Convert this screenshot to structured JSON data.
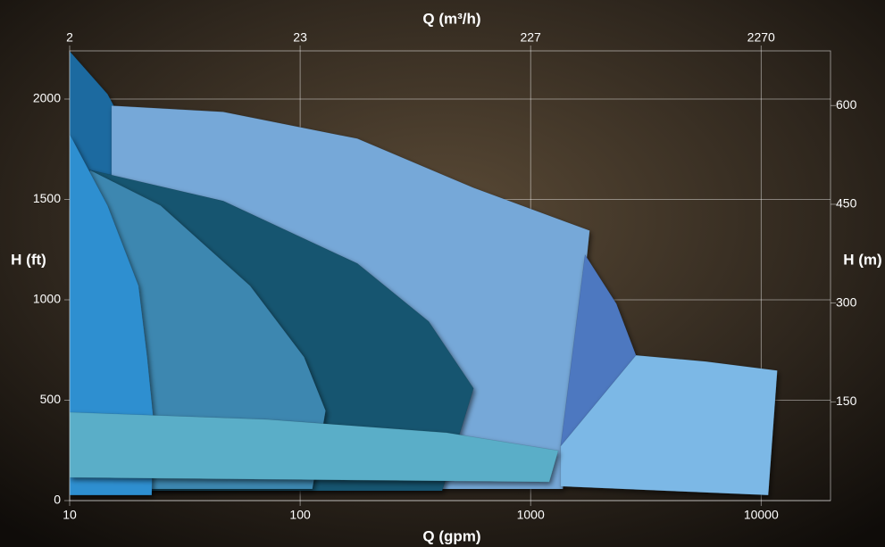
{
  "chart_data": {
    "type": "region",
    "xlabel": "Q (gpm)",
    "x2label": "Q (m³/h)",
    "ylabel": "H (ft)",
    "y2label": "H (m)",
    "xscale": "log",
    "x2scale": "log",
    "grid": true,
    "xlim": [
      10,
      20000
    ],
    "xticks": [
      10,
      100,
      1000,
      10000
    ],
    "x2lim": [
      2.27,
      4542
    ],
    "x2ticks": [
      {
        "value": 2.27,
        "label": "2"
      },
      {
        "value": 22.7,
        "label": "23"
      },
      227,
      2270
    ],
    "ylim": [
      0,
      2240
    ],
    "yticks": [
      0,
      500,
      1000,
      1500,
      2000
    ],
    "y2lim": [
      0,
      683
    ],
    "y2ticks": [
      150,
      300,
      450,
      600
    ],
    "series": [
      {
        "color": "#1c6aa0",
        "x": [
          10,
          14.6,
          19.9,
          24.8,
          10
        ],
        "values": [
          2238,
          2025,
          1736,
          1470,
          1470
        ]
      },
      {
        "color": "#76a8d8",
        "x": [
          15.2,
          46.4,
          177,
          565,
          1803,
          1380,
          15.2
        ],
        "values": [
          1967,
          1936,
          1803,
          1558,
          1345,
          58,
          58
        ]
      },
      {
        "color": "#4e78c0",
        "x": [
          1722,
          2354,
          2866,
          2766,
          1722,
          1349
        ],
        "values": [
          1225,
          981,
          724,
          71,
          182,
          271
        ]
      },
      {
        "color": "#7cb8e6",
        "x": [
          2866,
          5754,
          11750,
          10740,
          1349,
          1349
        ],
        "values": [
          724,
          693,
          648,
          27,
          71,
          271
        ]
      },
      {
        "color": "#155570",
        "x": [
          12.2,
          46.4,
          177,
          361,
          565,
          413,
          12.2
        ],
        "values": [
          1647,
          1492,
          1181,
          892,
          559,
          49,
          49
        ]
      },
      {
        "color": "#3d87b0",
        "x": [
          12.2,
          24.8,
          60.7,
          104,
          129,
          113,
          12.2
        ],
        "values": [
          1647,
          1470,
          1070,
          715,
          448,
          58,
          58
        ]
      },
      {
        "color": "#2f8fd0",
        "x": [
          10,
          14.6,
          19.9,
          21.7,
          23.1,
          22.7,
          10
        ],
        "values": [
          1825,
          1470,
          1070,
          715,
          404,
          27,
          27
        ]
      },
      {
        "color": "#5aaec8",
        "x": [
          10,
          72.4,
          432,
          1318,
          1205,
          10
        ],
        "values": [
          440,
          404,
          338,
          249,
          93,
          115
        ]
      }
    ]
  }
}
